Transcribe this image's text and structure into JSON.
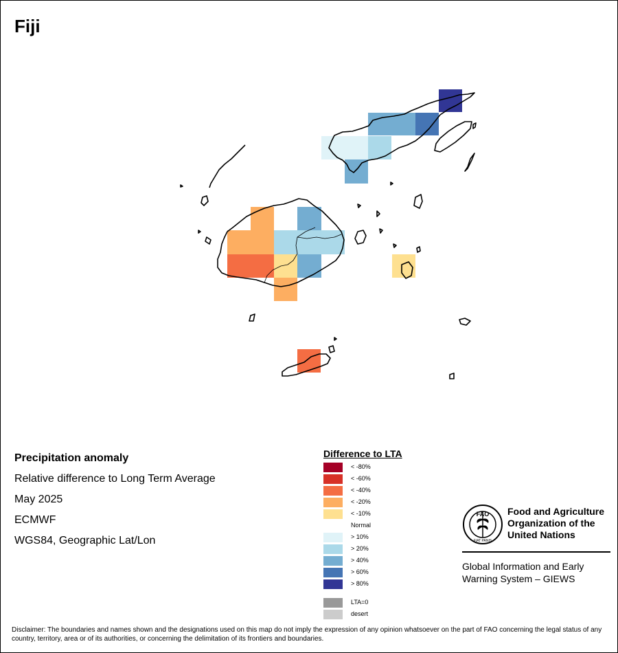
{
  "map": {
    "title": "Fiji"
  },
  "info": {
    "heading": "Precipitation anomaly",
    "subtitle": "Relative difference to Long Term Average",
    "date": "May 2025",
    "source": "ECMWF",
    "projection": "WGS84, Geographic Lat/Lon"
  },
  "legend": {
    "title": "Difference to LTA",
    "items": [
      {
        "label": "< -80%",
        "color": "#a50026"
      },
      {
        "label": "< -60%",
        "color": "#d73027"
      },
      {
        "label": "< -40%",
        "color": "#f46d43"
      },
      {
        "label": "< -20%",
        "color": "#fdae61"
      },
      {
        "label": "< -10%",
        "color": "#fee090"
      },
      {
        "label": "Normal",
        "color": "#ffffff"
      },
      {
        "label": "> 10%",
        "color": "#e0f3f8"
      },
      {
        "label": "> 20%",
        "color": "#abd9e9"
      },
      {
        "label": "> 40%",
        "color": "#74add1"
      },
      {
        "label": "> 60%",
        "color": "#4575b4"
      },
      {
        "label": "> 80%",
        "color": "#313695"
      }
    ],
    "extra": [
      {
        "label": "LTA=0",
        "color": "#999999"
      },
      {
        "label": "desert",
        "color": "#cccccc"
      }
    ]
  },
  "logo": {
    "fao_text": "FAO",
    "motto": "FIAT PANIS",
    "org_name": "Food and Agriculture Organization of the United Nations",
    "giews": "Global Information and Early Warning System – GIEWS"
  },
  "disclaimer": "Disclaimer: The boundaries and names shown and the designations used on this map do not imply the expression of any opinion whatsoever on the part of FAO concerning the legal status of any country, territory, area or of its authorities, or concerning the delimitation of its frontiers and boundaries.",
  "colors": {
    "outline": "#000000",
    "background": "#ffffff"
  }
}
